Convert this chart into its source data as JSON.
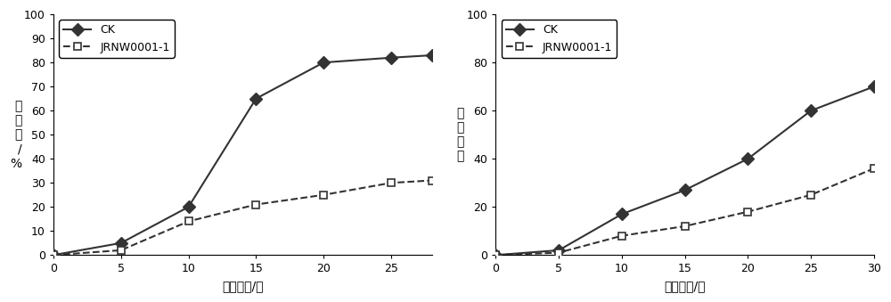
{
  "plot1": {
    "xlabel": "接种时间/天",
    "ylabel": "感病率/%",
    "xlim": [
      0,
      28
    ],
    "ylim": [
      0,
      100
    ],
    "xticks": [
      0,
      5,
      10,
      15,
      20,
      25
    ],
    "yticks": [
      0,
      10,
      20,
      30,
      40,
      50,
      60,
      70,
      80,
      90,
      100
    ],
    "CK_x": [
      0,
      5,
      10,
      15,
      20,
      25,
      28
    ],
    "CK_y": [
      0,
      5,
      20,
      65,
      80,
      82,
      83
    ],
    "JRNW_x": [
      0,
      5,
      10,
      15,
      20,
      25,
      28
    ],
    "JRNW_y": [
      0,
      2,
      14,
      21,
      25,
      30,
      31
    ]
  },
  "plot2": {
    "xlabel": "接种时间/天",
    "ylabel": "感病指数",
    "xlim": [
      0,
      30
    ],
    "ylim": [
      0,
      100
    ],
    "xticks": [
      0,
      5,
      10,
      15,
      20,
      25,
      30
    ],
    "yticks": [
      0,
      20,
      40,
      60,
      80,
      100
    ],
    "CK_x": [
      0,
      5,
      10,
      15,
      20,
      25,
      30
    ],
    "CK_y": [
      0,
      2,
      17,
      27,
      40,
      60,
      70
    ],
    "JRNW_x": [
      0,
      5,
      10,
      15,
      20,
      25,
      30
    ],
    "JRNW_y": [
      0,
      1,
      8,
      12,
      18,
      25,
      36
    ]
  },
  "legend_labels": [
    "CK",
    "JRNW0001-1"
  ],
  "line_color": "#333333",
  "markersize_CK": 7,
  "markersize_JRNW": 6,
  "linewidth": 1.5,
  "fontsize_label": 10,
  "fontsize_tick": 9,
  "fontsize_legend": 9
}
